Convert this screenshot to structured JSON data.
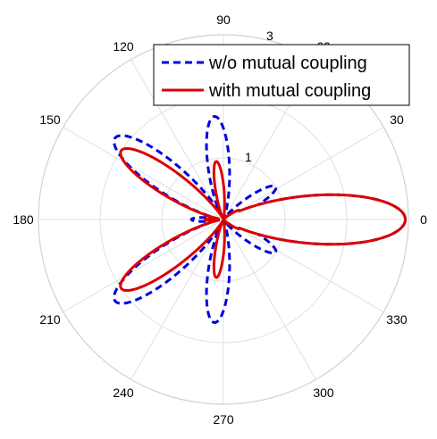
{
  "chart_data": {
    "type": "polar-line",
    "title": "",
    "angle_unit": "degrees",
    "radial_range": [
      0,
      3
    ],
    "radial_tick_labels": [
      "1",
      "3"
    ],
    "angle_tick_labels": [
      "0",
      "30",
      "60",
      "90",
      "120",
      "150",
      "180",
      "210",
      "240",
      "270",
      "300",
      "330"
    ],
    "grid": true,
    "legend": {
      "position": "top-right",
      "entries": [
        "w/o mutual coupling",
        "with mutual coupling"
      ]
    },
    "series": [
      {
        "name": "w/o mutual coupling",
        "color": "#0000dd",
        "style": "dashed",
        "lobes": [
          {
            "center_deg": 0,
            "peak": 2.95,
            "half_width_deg": 13
          },
          {
            "center_deg": 32,
            "peak": 1.0,
            "half_width_deg": 9
          },
          {
            "center_deg": 95,
            "peak": 1.68,
            "half_width_deg": 10
          },
          {
            "center_deg": 143,
            "peak": 2.2,
            "half_width_deg": 11
          },
          {
            "center_deg": 180,
            "peak": 0.52,
            "half_width_deg": 6
          },
          {
            "center_deg": 217,
            "peak": 2.2,
            "half_width_deg": 11
          },
          {
            "center_deg": 265,
            "peak": 1.68,
            "half_width_deg": 10
          },
          {
            "center_deg": 328,
            "peak": 1.0,
            "half_width_deg": 9
          }
        ]
      },
      {
        "name": "with mutual coupling",
        "color": "#dd0000",
        "style": "solid",
        "lobes": [
          {
            "center_deg": 0,
            "peak": 2.95,
            "half_width_deg": 13
          },
          {
            "center_deg": 30,
            "peak": 0.3,
            "half_width_deg": 6
          },
          {
            "center_deg": 97,
            "peak": 0.95,
            "half_width_deg": 7
          },
          {
            "center_deg": 146,
            "peak": 2.0,
            "half_width_deg": 10
          },
          {
            "center_deg": 180,
            "peak": 0.3,
            "half_width_deg": 5
          },
          {
            "center_deg": 214,
            "peak": 2.0,
            "half_width_deg": 10
          },
          {
            "center_deg": 263,
            "peak": 0.95,
            "half_width_deg": 7
          },
          {
            "center_deg": 330,
            "peak": 0.3,
            "half_width_deg": 6
          }
        ]
      }
    ]
  }
}
